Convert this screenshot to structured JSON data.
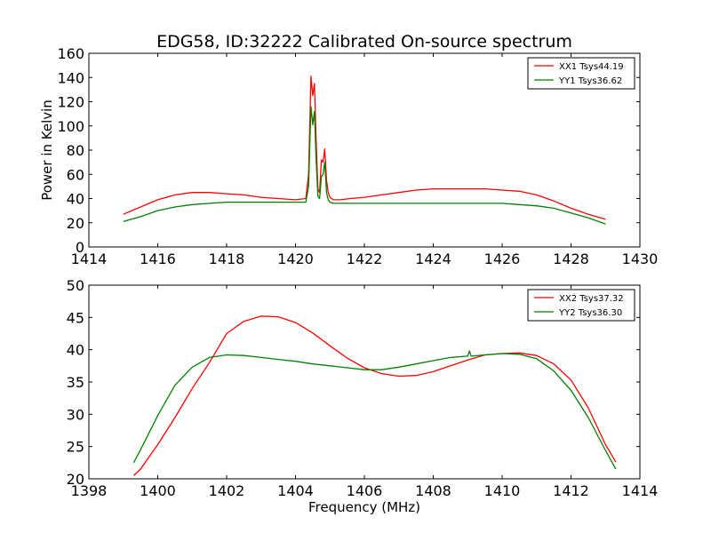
{
  "figure_title": "EDG58, ID:32222 Calibrated On-source spectrum",
  "chart_data": [
    {
      "type": "line",
      "xlim": [
        1414,
        1430
      ],
      "ylim": [
        0,
        160
      ],
      "xticks": [
        1414,
        1416,
        1418,
        1420,
        1422,
        1424,
        1426,
        1428,
        1430
      ],
      "yticks": [
        0,
        20,
        40,
        60,
        80,
        100,
        120,
        140,
        160
      ],
      "xlabel": "",
      "ylabel": "Power in Kelvin",
      "legend_position": "top-right",
      "grid": false,
      "series": [
        {
          "name": "XX1 Tsys44.19",
          "color": "#ff0000",
          "x": [
            1415.0,
            1415.5,
            1416.0,
            1416.5,
            1417.0,
            1417.5,
            1418.0,
            1418.5,
            1419.0,
            1419.5,
            1420.0,
            1420.3,
            1420.38,
            1420.45,
            1420.5,
            1420.55,
            1420.6,
            1420.65,
            1420.7,
            1420.75,
            1420.8,
            1420.85,
            1420.9,
            1420.95,
            1421.0,
            1421.1,
            1421.3,
            1421.6,
            1422.0,
            1422.5,
            1423.0,
            1423.5,
            1424.0,
            1424.5,
            1425.0,
            1425.5,
            1426.0,
            1426.5,
            1427.0,
            1427.5,
            1428.0,
            1428.5,
            1429.0
          ],
          "y": [
            27,
            33,
            39,
            43,
            45,
            45,
            44,
            43,
            41,
            40,
            39,
            40,
            60,
            141,
            125,
            135,
            88,
            48,
            45,
            72,
            70,
            81,
            55,
            45,
            41,
            39,
            39,
            40,
            41,
            43,
            45,
            47,
            48,
            48,
            48,
            48,
            47,
            46,
            43,
            38,
            32,
            27,
            23
          ]
        },
        {
          "name": "YY1 Tsys36.62",
          "color": "#008000",
          "x": [
            1415.0,
            1415.5,
            1416.0,
            1416.5,
            1417.0,
            1417.5,
            1418.0,
            1418.5,
            1419.0,
            1419.5,
            1420.0,
            1420.3,
            1420.38,
            1420.45,
            1420.5,
            1420.55,
            1420.6,
            1420.65,
            1420.7,
            1420.75,
            1420.8,
            1420.85,
            1420.9,
            1420.95,
            1421.0,
            1421.1,
            1421.3,
            1421.6,
            1422.0,
            1422.5,
            1423.0,
            1423.5,
            1424.0,
            1424.5,
            1425.0,
            1425.5,
            1426.0,
            1426.5,
            1427.0,
            1427.5,
            1428.0,
            1428.5,
            1429.0
          ],
          "y": [
            21,
            25,
            30,
            33,
            35,
            36,
            37,
            37,
            37,
            37,
            37,
            37,
            50,
            116,
            101,
            112,
            72,
            42,
            40,
            58,
            60,
            70,
            45,
            39,
            37,
            36,
            36,
            36,
            36,
            36,
            36,
            36,
            36,
            36,
            36,
            36,
            36,
            35,
            34,
            32,
            28,
            24,
            19
          ]
        }
      ]
    },
    {
      "type": "line",
      "xlim": [
        1398,
        1414
      ],
      "ylim": [
        20,
        50
      ],
      "xticks": [
        1398,
        1400,
        1402,
        1404,
        1406,
        1408,
        1410,
        1412,
        1414
      ],
      "yticks": [
        20,
        25,
        30,
        35,
        40,
        45,
        50
      ],
      "xlabel": "Frequency (MHz)",
      "ylabel": "",
      "legend_position": "top-right",
      "grid": false,
      "series": [
        {
          "name": "XX2 Tsys37.32",
          "color": "#ff0000",
          "x": [
            1399.3,
            1399.5,
            1400.0,
            1400.5,
            1401.0,
            1401.5,
            1402.0,
            1402.5,
            1403.0,
            1403.5,
            1404.0,
            1404.5,
            1405.0,
            1405.5,
            1406.0,
            1406.5,
            1407.0,
            1407.5,
            1408.0,
            1408.5,
            1409.0,
            1409.5,
            1410.0,
            1410.5,
            1411.0,
            1411.5,
            1412.0,
            1412.5,
            1413.0,
            1413.3
          ],
          "y": [
            20.5,
            21.5,
            25.3,
            29.5,
            34.0,
            38.0,
            42.5,
            44.4,
            45.2,
            45.1,
            44.2,
            42.6,
            40.6,
            38.7,
            37.2,
            36.3,
            35.9,
            36.0,
            36.6,
            37.5,
            38.4,
            39.2,
            39.4,
            39.5,
            39.1,
            37.8,
            35.3,
            31.0,
            25.3,
            22.6
          ]
        },
        {
          "name": "YY2 Tsys36.30",
          "color": "#008000",
          "x": [
            1399.3,
            1399.5,
            1400.0,
            1400.5,
            1401.0,
            1401.5,
            1402.0,
            1402.5,
            1403.0,
            1403.5,
            1404.0,
            1404.5,
            1405.0,
            1405.5,
            1406.0,
            1406.5,
            1407.0,
            1407.5,
            1408.0,
            1408.5,
            1409.0,
            1409.05,
            1409.1,
            1409.5,
            1410.0,
            1410.5,
            1411.0,
            1411.5,
            1412.0,
            1412.5,
            1413.0,
            1413.3
          ],
          "y": [
            22.5,
            24.5,
            29.8,
            34.5,
            37.3,
            38.8,
            39.2,
            39.1,
            38.8,
            38.5,
            38.2,
            37.8,
            37.5,
            37.2,
            36.9,
            36.9,
            37.3,
            37.8,
            38.3,
            38.8,
            39.0,
            39.8,
            39.0,
            39.2,
            39.4,
            39.3,
            38.6,
            36.7,
            33.7,
            29.5,
            24.4,
            21.5
          ]
        }
      ]
    }
  ]
}
